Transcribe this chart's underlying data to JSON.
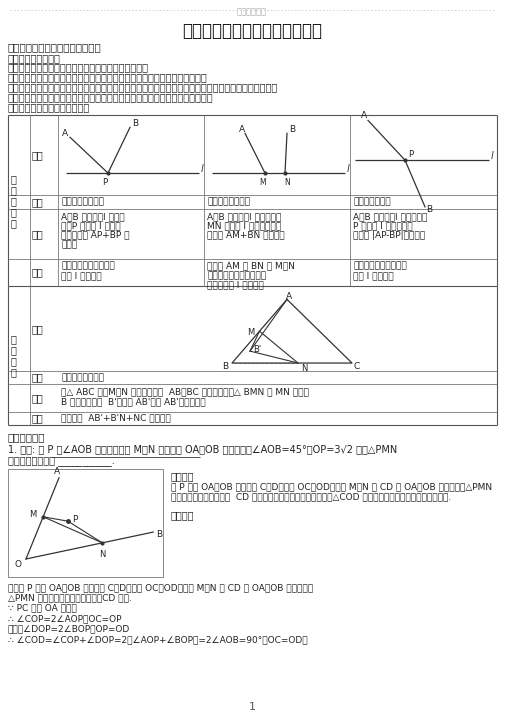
{
  "title": "初中数学《最值问题》典型例题",
  "top_watermark": "最新资料荐荐",
  "section1_title": "一、解决几何最值问题的通常思路",
  "intro_lines": [
    "两点之间线段最短；",
    "直线外一点与直线上所有点的连线段中，垂线段最短；",
    "三角形两边之和大于第三边或三角形两边之差小于第三边（重合时取到最值）",
    "是解决几何最值问题的理论依据，根据不同特征转化是解决最值问题的关键，通过转化减少变量，向三个",
    "定理靠拢进而解决问题；直接调用基本模型也是解决几何最值问题的高效手段。",
    "几何最值问题中的基本模型举例"
  ],
  "section2_title": "二、典型题单",
  "problem1": "1. 如图: 点 P 是∠AOB 内一定点，点 M、N 分别在边 OA、OB 上运动，若∠AOB=45°，OP=3√2 ，则△PMN",
  "problem1b": "的周长的最小值为 ___________.",
  "page_num": "1",
  "background": "#ffffff",
  "text_color": "#222222",
  "border_color": "#666666"
}
